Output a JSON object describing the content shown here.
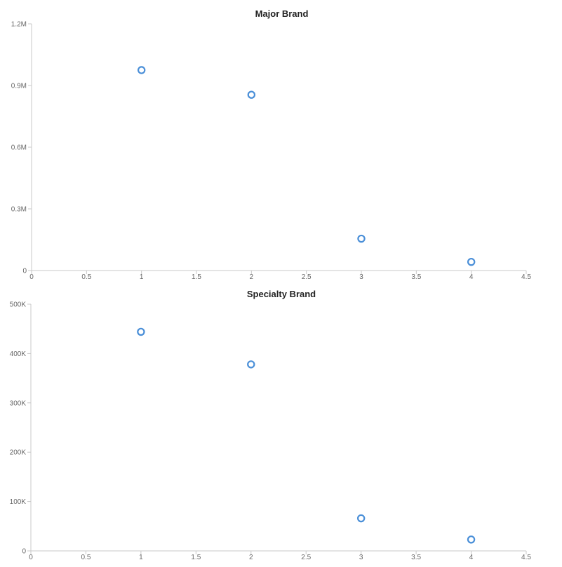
{
  "chart_data": [
    {
      "type": "scatter",
      "title": "Major Brand",
      "xlabel": "",
      "ylabel": "",
      "xlim": [
        0,
        4.5
      ],
      "ylim": [
        0,
        1200000
      ],
      "x_ticks": [
        0,
        0.5,
        1,
        1.5,
        2,
        2.5,
        3,
        3.5,
        4,
        4.5
      ],
      "x_tick_labels": [
        "0",
        "0.5",
        "1",
        "1.5",
        "2",
        "2.5",
        "3",
        "3.5",
        "4",
        "4.5"
      ],
      "y_ticks": [
        0,
        300000,
        600000,
        900000,
        1200000
      ],
      "y_tick_labels": [
        "0",
        "0.3M",
        "0.6M",
        "0.9M",
        "1.2M"
      ],
      "grid": false,
      "legend": "none",
      "series": [
        {
          "color": "#4a8fd8",
          "x": [
            1,
            2,
            3,
            4
          ],
          "y": [
            975000,
            855000,
            155000,
            42000
          ]
        }
      ]
    },
    {
      "type": "scatter",
      "title": "Specialty Brand",
      "xlabel": "",
      "ylabel": "",
      "xlim": [
        0,
        4.5
      ],
      "ylim": [
        0,
        500000
      ],
      "x_ticks": [
        0,
        0.5,
        1,
        1.5,
        2,
        2.5,
        3,
        3.5,
        4,
        4.5
      ],
      "x_tick_labels": [
        "0",
        "0.5",
        "1",
        "1.5",
        "2",
        "2.5",
        "3",
        "3.5",
        "4",
        "4.5"
      ],
      "y_ticks": [
        0,
        100000,
        200000,
        300000,
        400000,
        500000
      ],
      "y_tick_labels": [
        "0",
        "100K",
        "200K",
        "300K",
        "400K",
        "500K"
      ],
      "grid": false,
      "legend": "none",
      "series": [
        {
          "color": "#4a8fd8",
          "x": [
            1,
            2,
            3,
            4
          ],
          "y": [
            444000,
            378000,
            66000,
            23000
          ]
        }
      ]
    }
  ]
}
